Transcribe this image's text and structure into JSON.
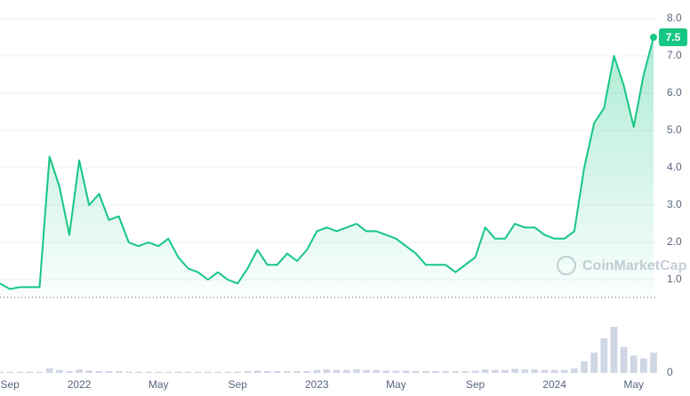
{
  "chart_data": {
    "type": "line",
    "categories": [
      null,
      "Sep",
      null,
      null,
      null,
      null,
      null,
      null,
      "2022",
      null,
      null,
      null,
      null,
      null,
      null,
      null,
      "May",
      null,
      null,
      null,
      null,
      null,
      null,
      null,
      "Sep",
      null,
      null,
      null,
      null,
      null,
      null,
      null,
      "2023",
      null,
      null,
      null,
      null,
      null,
      null,
      null,
      "May",
      null,
      null,
      null,
      null,
      null,
      null,
      null,
      "Sep",
      null,
      null,
      null,
      null,
      null,
      null,
      null,
      "2024",
      null,
      null,
      null,
      null,
      null,
      null,
      null,
      "May",
      null,
      null
    ],
    "values": [
      0.9,
      0.75,
      0.8,
      0.8,
      0.8,
      4.3,
      3.5,
      2.2,
      4.2,
      3.0,
      3.3,
      2.6,
      2.7,
      2.0,
      1.9,
      2.0,
      1.9,
      2.1,
      1.6,
      1.3,
      1.2,
      1.0,
      1.2,
      1.0,
      0.9,
      1.3,
      1.8,
      1.4,
      1.4,
      1.7,
      1.5,
      1.8,
      2.3,
      2.4,
      2.3,
      2.4,
      2.5,
      2.3,
      2.3,
      2.2,
      2.1,
      1.9,
      1.7,
      1.4,
      1.4,
      1.4,
      1.2,
      1.4,
      1.6,
      2.4,
      2.1,
      2.1,
      2.5,
      2.4,
      2.4,
      2.2,
      2.1,
      2.1,
      2.3,
      4.0,
      5.2,
      5.6,
      7.0,
      6.2,
      5.1,
      6.5,
      7.5
    ],
    "value_labels": [
      null,
      null,
      null,
      null,
      null,
      null,
      null,
      null,
      null,
      null,
      null,
      null,
      null,
      null,
      null,
      null,
      null,
      null,
      null,
      null,
      null,
      null,
      null,
      null,
      null,
      null,
      null,
      null,
      null,
      null,
      null,
      null,
      null,
      null,
      null,
      null,
      null,
      null,
      null,
      null,
      null,
      null,
      null,
      null,
      null,
      null,
      null,
      null,
      null,
      null,
      null,
      null,
      null,
      null,
      null,
      null,
      null,
      null,
      null,
      null,
      null,
      null,
      null,
      null,
      null,
      null,
      "7.5"
    ],
    "color": "#16c784",
    "ylim": [
      0.5,
      8.5
    ],
    "yticks": [
      {
        "value": 1,
        "label": "1.0"
      },
      {
        "value": 2,
        "label": "2.0"
      },
      {
        "value": 3,
        "label": "3.0"
      },
      {
        "value": 4,
        "label": "4.0"
      },
      {
        "value": 5,
        "label": "5.0"
      },
      {
        "value": 6,
        "label": "6.0"
      },
      {
        "value": 7,
        "label": "7.0"
      },
      {
        "value": 8,
        "label": "8.0"
      }
    ],
    "grid": true,
    "watermark": "CoinMarketCap",
    "volume": {
      "color": "#cfd6e4",
      "values": [
        2,
        2,
        2,
        2,
        2,
        8,
        5,
        3,
        6,
        4,
        3,
        3,
        3,
        2,
        2,
        2,
        2,
        2,
        2,
        2,
        2,
        2,
        2,
        2,
        2,
        3,
        4,
        3,
        3,
        3,
        3,
        3,
        5,
        6,
        5,
        5,
        6,
        5,
        5,
        4,
        4,
        4,
        3,
        3,
        3,
        3,
        3,
        3,
        4,
        6,
        5,
        5,
        7,
        6,
        6,
        5,
        5,
        5,
        8,
        20,
        35,
        60,
        80,
        45,
        30,
        25,
        35
      ]
    },
    "y2lim": [
      0,
      100
    ],
    "y2ticks": [
      0
    ]
  }
}
